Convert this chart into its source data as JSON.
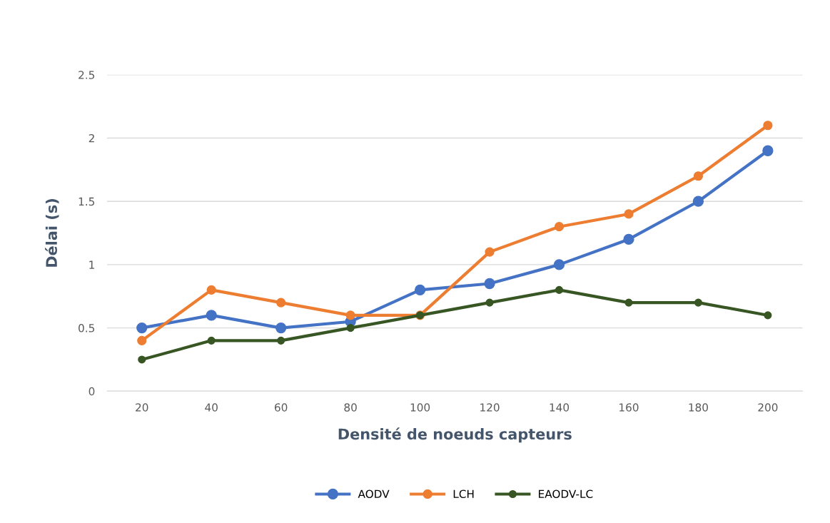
{
  "chart_data": {
    "type": "line",
    "xlabel": "Densité de noeuds capteurs",
    "ylabel": "Délai (s)",
    "categories": [
      "20",
      "40",
      "60",
      "80",
      "100",
      "120",
      "140",
      "160",
      "180",
      "200"
    ],
    "series": [
      {
        "name": "AODV",
        "color": "#4472c4",
        "values": [
          0.5,
          0.6,
          0.5,
          0.55,
          0.8,
          0.85,
          1.0,
          1.2,
          1.5,
          1.9
        ]
      },
      {
        "name": "LCH",
        "color": "#ed7d31",
        "values": [
          0.4,
          0.8,
          0.7,
          0.6,
          0.6,
          1.1,
          1.3,
          1.4,
          1.7,
          2.1
        ]
      },
      {
        "name": "EAODV-LC",
        "color": "#375623",
        "values": [
          0.25,
          0.4,
          0.4,
          0.5,
          0.6,
          0.7,
          0.8,
          0.7,
          0.7,
          0.6
        ]
      }
    ],
    "ylim": [
      0,
      2.5
    ],
    "yticks": [
      0,
      0.5,
      1,
      1.5,
      2,
      2.5
    ],
    "grid": "y",
    "legend": "bottom",
    "marker": "circle",
    "line_style": "solid"
  }
}
